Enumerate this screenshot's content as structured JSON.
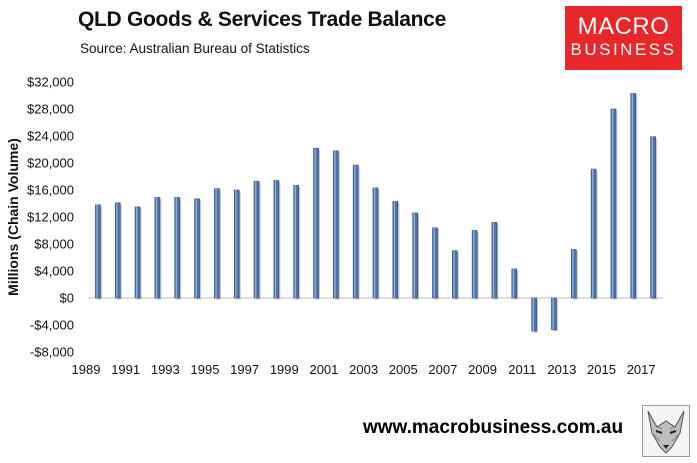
{
  "header": {
    "title": "QLD Goods & Services Trade Balance",
    "source": "Source:  Australian Bureau of Statistics"
  },
  "logo": {
    "line1": "MACRO",
    "line2": "BUSINESS",
    "color": "#e8272a"
  },
  "footer": {
    "website": "www.macrobusiness.com.au",
    "mascot_icon": "fox-icon"
  },
  "chart_data": {
    "type": "bar",
    "title": "QLD Goods & Services Trade Balance",
    "subtitle": "Source:  Australian Bureau of Statistics",
    "ylabel": "Millions (Chain Volume)",
    "xlabel": "",
    "ylim": [
      -8000,
      32000
    ],
    "yticks": [
      -8000,
      -4000,
      0,
      4000,
      8000,
      12000,
      16000,
      20000,
      24000,
      28000,
      32000
    ],
    "ytick_labels": [
      "-$8,000",
      "-$4,000",
      "$0",
      "$4,000",
      "$8,000",
      "$12,000",
      "$16,000",
      "$20,000",
      "$24,000",
      "$28,000",
      "$32,000"
    ],
    "xtick_labels": [
      "1989",
      "1991",
      "1993",
      "1995",
      "1997",
      "1999",
      "2001",
      "2003",
      "2005",
      "2007",
      "2009",
      "2011",
      "2013",
      "2015",
      "2017"
    ],
    "categories": [
      "1989",
      "1990",
      "1991",
      "1992",
      "1993",
      "1994",
      "1995",
      "1996",
      "1997",
      "1998",
      "1999",
      "2000",
      "2001",
      "2002",
      "2003",
      "2004",
      "2005",
      "2006",
      "2007",
      "2008",
      "2009",
      "2010",
      "2011",
      "2012",
      "2013",
      "2014",
      "2015",
      "2016",
      "2017"
    ],
    "values": [
      13800,
      14100,
      13500,
      14900,
      14900,
      14700,
      16200,
      16000,
      17300,
      17400,
      16700,
      22200,
      21800,
      19700,
      16300,
      14300,
      12600,
      10400,
      7000,
      10000,
      11200,
      4300,
      -4900,
      -4700,
      7200,
      19100,
      28000,
      30300,
      23900
    ],
    "bar_color": "#4f73a8",
    "grid": false,
    "legend": "none"
  }
}
